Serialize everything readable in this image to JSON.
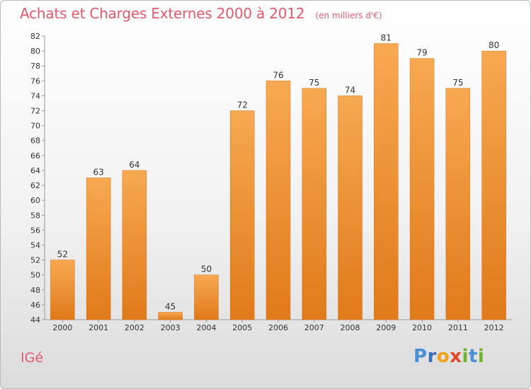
{
  "header": {
    "title": "Achats et Charges Externes 2000 à 2012",
    "subtitle": "(en milliers d'€)"
  },
  "footer": {
    "location": "IGé",
    "brand_letters": [
      {
        "char": "P",
        "color": "#4a8fd6"
      },
      {
        "char": "r",
        "color": "#3b6fb9"
      },
      {
        "char": "o",
        "color": "#f0a21c"
      },
      {
        "char": "x",
        "color": "#e2482b"
      },
      {
        "char": "i",
        "color": "#6fb52c"
      },
      {
        "char": "t",
        "color": "#4a8fd6"
      },
      {
        "char": "i",
        "color": "#6fb52c"
      }
    ]
  },
  "colors": {
    "bar_top": "#f7a952",
    "bar_bottom": "#e07a1a",
    "axis": "#999999"
  },
  "chart_data": {
    "type": "bar",
    "title": "Achats et Charges Externes 2000 à 2012",
    "subtitle": "(en milliers d'€)",
    "categories": [
      "2000",
      "2001",
      "2002",
      "2003",
      "2004",
      "2005",
      "2006",
      "2007",
      "2008",
      "2009",
      "2010",
      "2011",
      "2012"
    ],
    "values": [
      52,
      63,
      64,
      45,
      50,
      72,
      76,
      75,
      74,
      81,
      79,
      75,
      80
    ],
    "ylim": [
      44,
      82
    ],
    "yticks": [
      44,
      46,
      48,
      50,
      52,
      54,
      56,
      58,
      60,
      62,
      64,
      66,
      68,
      70,
      72,
      74,
      76,
      78,
      80,
      82
    ],
    "grid": false,
    "legend": "none"
  }
}
